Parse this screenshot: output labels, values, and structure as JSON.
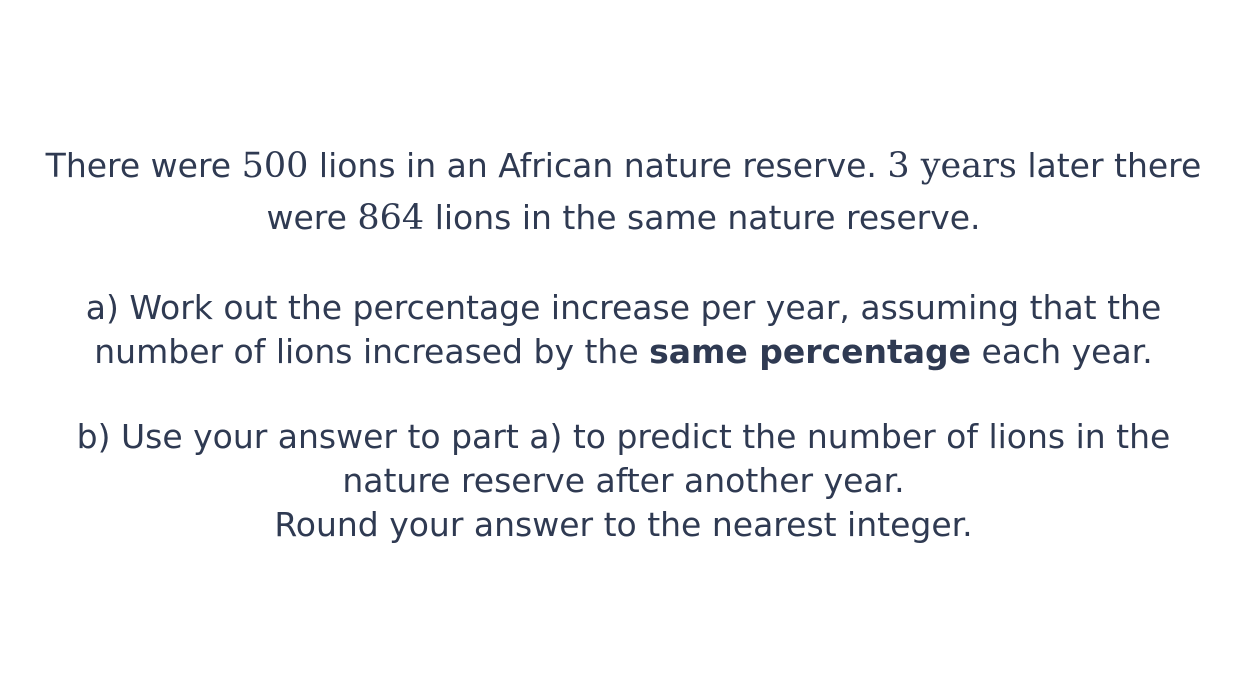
{
  "question": {
    "intro": {
      "line1": {
        "t1": "There were ",
        "m1": "500",
        "t2": " lions in an African nature reserve. ",
        "m2": "3 years",
        "t3": " later there"
      },
      "line2": {
        "t1": "were ",
        "m1": "864",
        "t2": " lions in the same nature reserve."
      }
    },
    "part_a": {
      "line1": "a) Work out the percentage increase per year, assuming that the",
      "line2": {
        "t1": "number of lions increased by the ",
        "bold": "same percentage",
        "t2": " each year."
      }
    },
    "part_b": {
      "line1": "b) Use your answer to part a) to predict the number of lions in the",
      "line2": "nature reserve after another year.",
      "line3": "Round your answer to the nearest integer."
    }
  }
}
